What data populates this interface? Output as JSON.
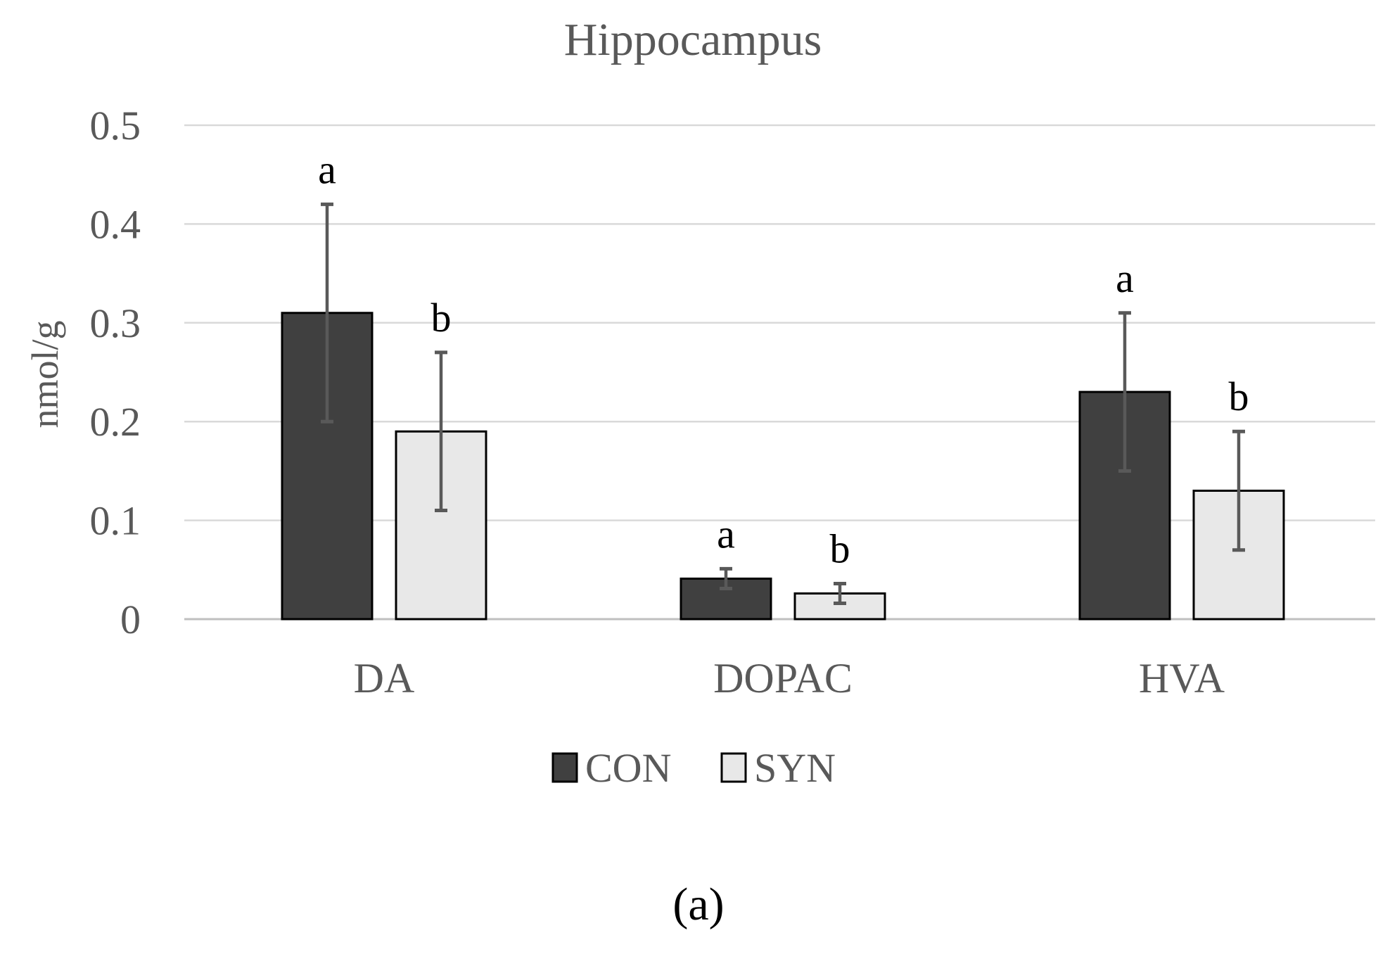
{
  "chart_data": {
    "type": "bar",
    "title": "Hippocampus",
    "xlabel": "",
    "ylabel": "nmol/g",
    "ylim": [
      0,
      0.5
    ],
    "yticks": [
      "0",
      "0.1",
      "0.2",
      "0.3",
      "0.4",
      "0.5"
    ],
    "ytick_values": [
      0,
      0.1,
      0.2,
      0.3,
      0.4,
      0.5
    ],
    "grid": true,
    "legend_position": "bottom-center",
    "categories": [
      "DA",
      "DOPAC",
      "HVA"
    ],
    "series": [
      {
        "name": "CON",
        "color": "#404040",
        "values": [
          0.31,
          0.041,
          0.23
        ],
        "error_low": [
          0.2,
          0.031,
          0.15
        ],
        "error_high": [
          0.42,
          0.051,
          0.31
        ],
        "labels": [
          "a",
          "a",
          "a"
        ]
      },
      {
        "name": "SYN",
        "color": "#e8e8e8",
        "values": [
          0.19,
          0.026,
          0.13
        ],
        "error_low": [
          0.11,
          0.016,
          0.07
        ],
        "error_high": [
          0.27,
          0.036,
          0.19
        ],
        "labels": [
          "b",
          "b",
          "b"
        ]
      }
    ]
  },
  "panel_label": "(a)"
}
